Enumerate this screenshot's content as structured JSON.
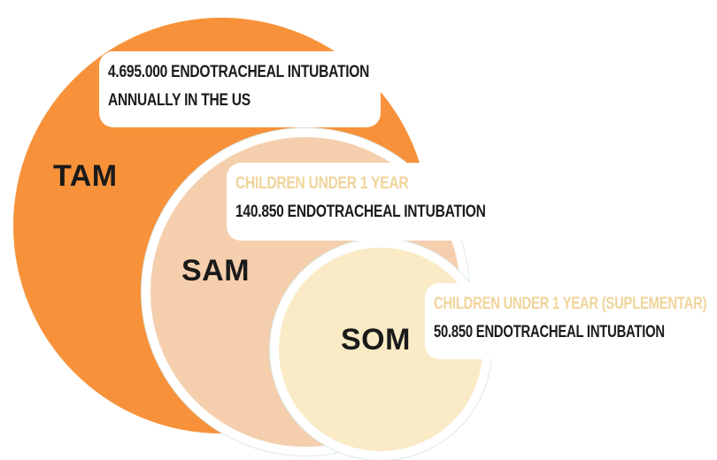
{
  "colors": {
    "tam": "#f7923a",
    "sam": "#f5cfad",
    "som": "#faebc6",
    "accent_text": "#f0d49a",
    "text": "#1b1b1b"
  },
  "tam": {
    "label": "TAM",
    "line1": "4.695.000 ENDOTRACHEAL INTUBATION",
    "line2": "ANNUALLY IN THE US"
  },
  "sam": {
    "label": "SAM",
    "segment": "CHILDREN UNDER 1 YEAR",
    "value_text": "140.850 ENDOTRACHEAL INTUBATION"
  },
  "som": {
    "label": "SOM",
    "segment": "CHILDREN UNDER 1 YEAR (SUPLEMENTAR)",
    "value_text": "50.850 ENDOTRACHEAL INTUBATION"
  }
}
